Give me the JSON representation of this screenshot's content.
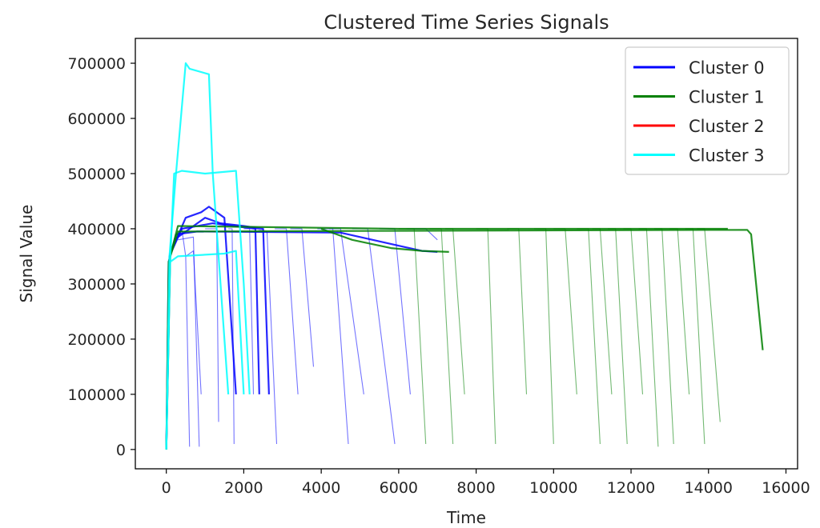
{
  "chart_data": {
    "type": "line",
    "title": "Clustered Time Series Signals",
    "xlabel": "Time",
    "ylabel": "Signal Value",
    "xlim": [
      -800,
      16300
    ],
    "ylim": [
      -35000,
      745000
    ],
    "xticks": [
      0,
      2000,
      4000,
      6000,
      8000,
      10000,
      12000,
      14000,
      16000
    ],
    "yticks": [
      0,
      100000,
      200000,
      300000,
      400000,
      500000,
      600000,
      700000
    ],
    "grid": false,
    "legend_position": "top-right",
    "series": [
      {
        "name": "Cluster 0",
        "color": "#0000ff",
        "traces": [
          [
            [
              0,
              0
            ],
            [
              60,
              340000
            ],
            [
              250,
              390000
            ],
            [
              800,
              395000
            ],
            [
              4500,
              393000
            ],
            [
              6600,
              360000
            ],
            [
              7000,
              358000
            ]
          ],
          [
            [
              0,
              0
            ],
            [
              80,
              350000
            ],
            [
              400,
              400000
            ],
            [
              1200,
              410000
            ],
            [
              2300,
              400000
            ],
            [
              2400,
              100000
            ]
          ],
          [
            [
              0,
              0
            ],
            [
              100,
              355000
            ],
            [
              500,
              420000
            ],
            [
              900,
              430000
            ],
            [
              1100,
              440000
            ],
            [
              1500,
              420000
            ],
            [
              1800,
              100000
            ]
          ],
          [
            [
              200,
              380000
            ],
            [
              600,
              400000
            ],
            [
              1000,
              420000
            ],
            [
              1400,
              410000
            ],
            [
              2000,
              405000
            ],
            [
              2500,
              400000
            ],
            [
              2650,
              100000
            ]
          ],
          [
            [
              300,
              380000
            ],
            [
              700,
              385000
            ],
            [
              850,
              5000
            ]
          ],
          [
            [
              400,
              400000
            ],
            [
              500,
              350000
            ],
            [
              600,
              5000
            ]
          ],
          [
            [
              500,
              350000
            ],
            [
              700,
              360000
            ],
            [
              900,
              100000
            ]
          ],
          [
            [
              1000,
              400000
            ],
            [
              1300,
              400000
            ],
            [
              1350,
              50000
            ]
          ],
          [
            [
              1600,
              400000
            ],
            [
              1700,
              400000
            ],
            [
              1750,
              10000
            ]
          ],
          [
            [
              2000,
              400000
            ],
            [
              2150,
              400000
            ],
            [
              2250,
              100000
            ]
          ],
          [
            [
              2300,
              400000
            ],
            [
              2600,
              395000
            ],
            [
              2850,
              10000
            ]
          ],
          [
            [
              2800,
              400000
            ],
            [
              3100,
              400000
            ],
            [
              3400,
              100000
            ]
          ],
          [
            [
              3200,
              400000
            ],
            [
              3500,
              400000
            ],
            [
              3800,
              150000
            ]
          ],
          [
            [
              3900,
              400000
            ],
            [
              4300,
              400000
            ],
            [
              4700,
              10000
            ]
          ],
          [
            [
              4200,
              400000
            ],
            [
              4500,
              400000
            ],
            [
              5100,
              100000
            ]
          ],
          [
            [
              4800,
              400000
            ],
            [
              5200,
              400000
            ],
            [
              5900,
              10000
            ]
          ],
          [
            [
              5500,
              400000
            ],
            [
              5900,
              400000
            ],
            [
              6300,
              100000
            ]
          ],
          [
            [
              6200,
              400000
            ],
            [
              6700,
              400000
            ],
            [
              7000,
              380000
            ]
          ]
        ]
      },
      {
        "name": "Cluster 1",
        "color": "#008000",
        "traces": [
          [
            [
              0,
              0
            ],
            [
              60,
              340000
            ],
            [
              300,
              395000
            ],
            [
              5000,
              396000
            ],
            [
              15000,
              398000
            ],
            [
              15100,
              390000
            ],
            [
              15400,
              180000
            ]
          ],
          [
            [
              0,
              0
            ],
            [
              100,
              350000
            ],
            [
              300,
              405000
            ],
            [
              6000,
              400000
            ],
            [
              14500,
              400000
            ]
          ],
          [
            [
              4000,
              400000
            ],
            [
              4800,
              380000
            ],
            [
              5800,
              365000
            ],
            [
              6600,
              360000
            ],
            [
              7300,
              358000
            ]
          ],
          [
            [
              6000,
              400000
            ],
            [
              6400,
              400000
            ],
            [
              6700,
              10000
            ]
          ],
          [
            [
              6800,
              400000
            ],
            [
              7100,
              400000
            ],
            [
              7400,
              10000
            ]
          ],
          [
            [
              7200,
              400000
            ],
            [
              7400,
              400000
            ],
            [
              7700,
              100000
            ]
          ],
          [
            [
              8000,
              400000
            ],
            [
              8300,
              400000
            ],
            [
              8500,
              10000
            ]
          ],
          [
            [
              8800,
              400000
            ],
            [
              9100,
              400000
            ],
            [
              9300,
              100000
            ]
          ],
          [
            [
              9500,
              400000
            ],
            [
              9800,
              400000
            ],
            [
              10000,
              10000
            ]
          ],
          [
            [
              10000,
              400000
            ],
            [
              10300,
              400000
            ],
            [
              10600,
              100000
            ]
          ],
          [
            [
              10600,
              400000
            ],
            [
              10900,
              400000
            ],
            [
              11200,
              10000
            ]
          ],
          [
            [
              11000,
              400000
            ],
            [
              11200,
              400000
            ],
            [
              11500,
              100000
            ]
          ],
          [
            [
              11400,
              400000
            ],
            [
              11600,
              400000
            ],
            [
              11900,
              10000
            ]
          ],
          [
            [
              11800,
              400000
            ],
            [
              12000,
              400000
            ],
            [
              12300,
              100000
            ]
          ],
          [
            [
              12200,
              400000
            ],
            [
              12400,
              400000
            ],
            [
              12700,
              5000
            ]
          ],
          [
            [
              12600,
              400000
            ],
            [
              12800,
              400000
            ],
            [
              13100,
              10000
            ]
          ],
          [
            [
              13000,
              400000
            ],
            [
              13200,
              400000
            ],
            [
              13500,
              100000
            ]
          ],
          [
            [
              13400,
              400000
            ],
            [
              13600,
              400000
            ],
            [
              13900,
              10000
            ]
          ],
          [
            [
              13700,
              400000
            ],
            [
              13900,
              400000
            ],
            [
              14300,
              50000
            ]
          ]
        ]
      },
      {
        "name": "Cluster 2",
        "color": "#ff0000",
        "traces": []
      },
      {
        "name": "Cluster 3",
        "color": "#00ffff",
        "traces": [
          [
            [
              0,
              0
            ],
            [
              80,
              350000
            ],
            [
              250,
              500000
            ],
            [
              500,
              700000
            ],
            [
              600,
              690000
            ],
            [
              1100,
              680000
            ],
            [
              1200,
              500000
            ],
            [
              1400,
              300000
            ],
            [
              1600,
              100000
            ]
          ],
          [
            [
              0,
              0
            ],
            [
              100,
              340000
            ],
            [
              200,
              500000
            ],
            [
              400,
              505000
            ],
            [
              1000,
              500000
            ],
            [
              1800,
              505000
            ],
            [
              2000,
              300000
            ],
            [
              2150,
              100000
            ]
          ],
          [
            [
              100,
              340000
            ],
            [
              300,
              350000
            ],
            [
              1500,
              355000
            ],
            [
              1800,
              360000
            ],
            [
              2000,
              100000
            ]
          ]
        ]
      }
    ]
  }
}
